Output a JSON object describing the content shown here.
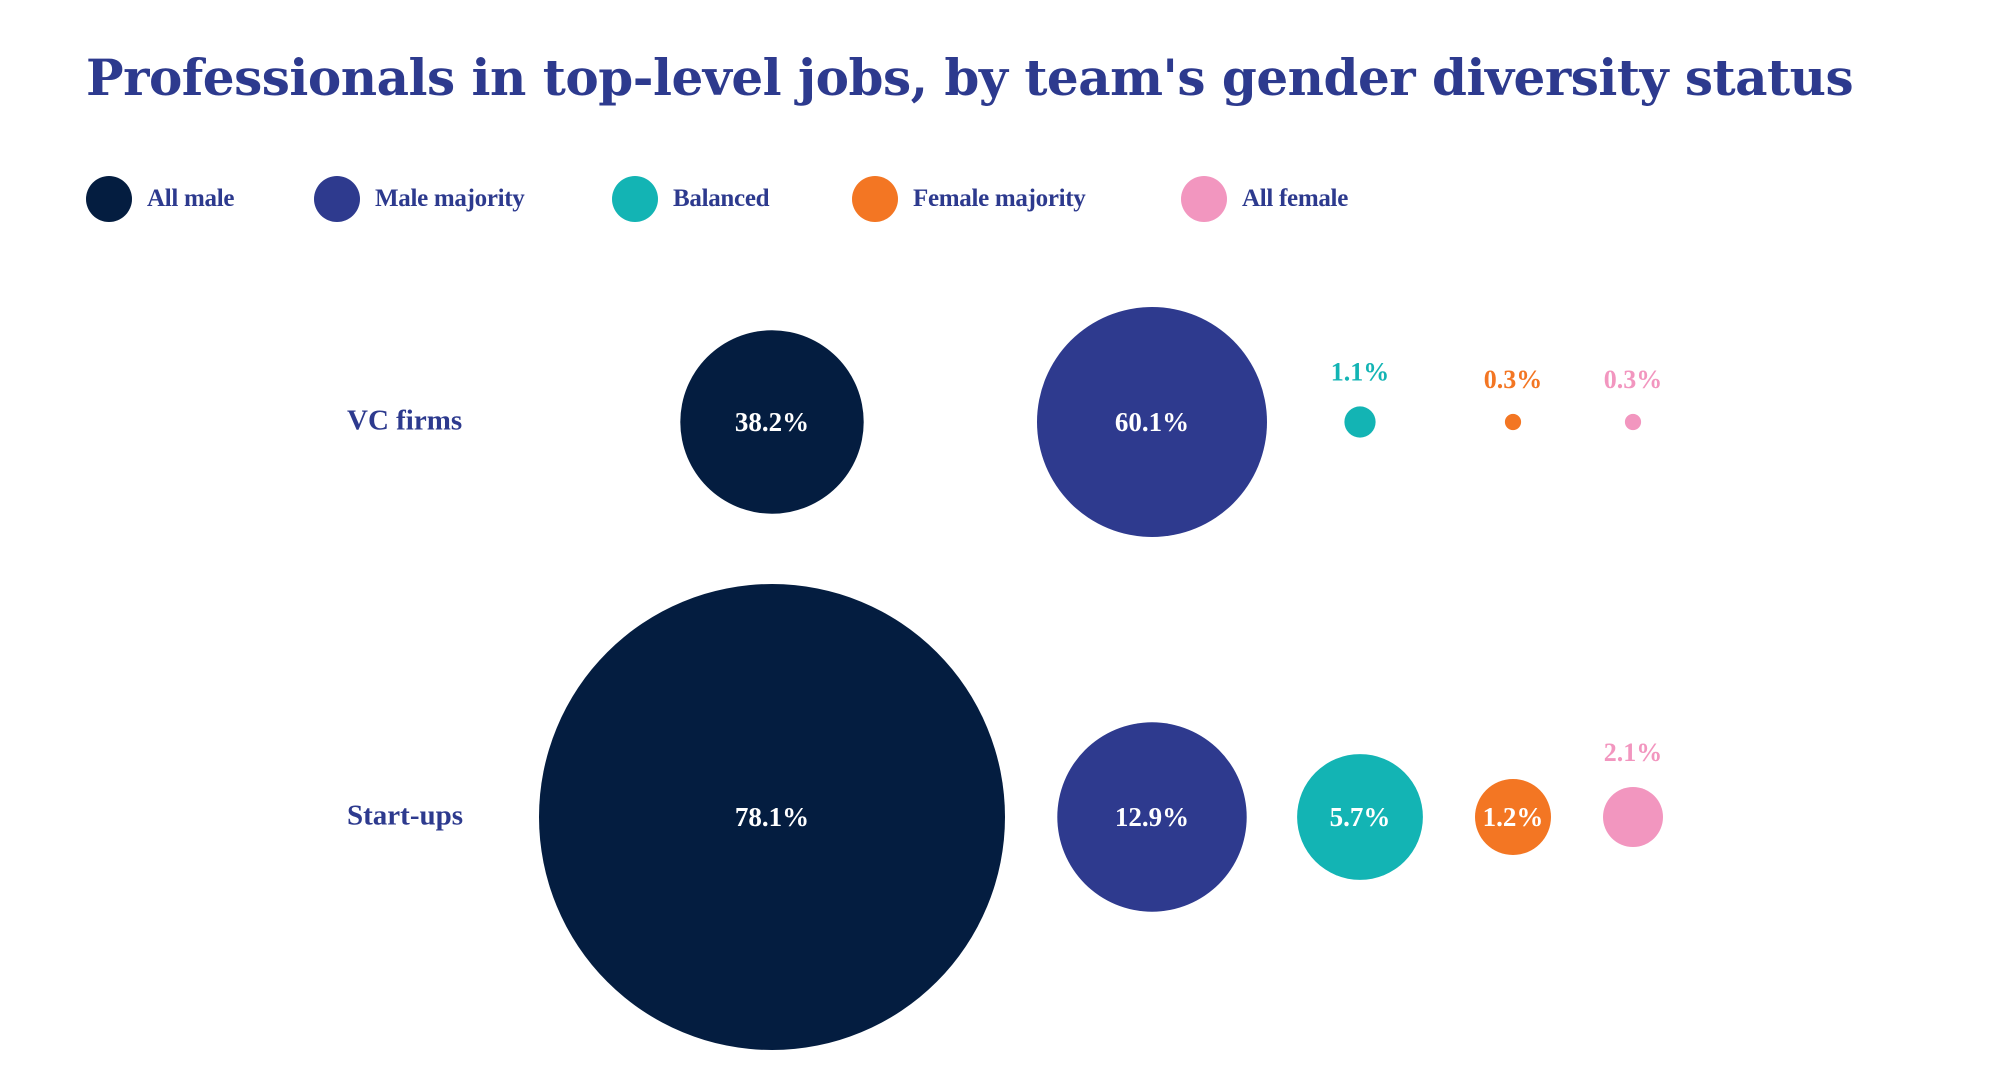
{
  "chart_data": {
    "type": "bubble",
    "title": "Professionals in top-level jobs, by team's gender diversity status",
    "categories": [
      "All male",
      "Male majority",
      "Balanced",
      "Female majority",
      "All female"
    ],
    "colors": {
      "All male": "#041d40",
      "Male majority": "#2e3a8e",
      "Balanced": "#13b4b4",
      "Female majority": "#f37623",
      "All female": "#f296bf"
    },
    "legend": {
      "placement": "top-left",
      "items": [
        {
          "label": "All male",
          "color": "#041d40"
        },
        {
          "label": "Male majority",
          "color": "#2e3a8e"
        },
        {
          "label": "Balanced",
          "color": "#13b4b4"
        },
        {
          "label": "Female majority",
          "color": "#f37623"
        },
        {
          "label": "All female",
          "color": "#f296bf"
        }
      ]
    },
    "unit": "%",
    "series": [
      {
        "name": "VC firms",
        "values": [
          38.2,
          60.1,
          1.1,
          0.3,
          0.3
        ],
        "labels": [
          "38.2%",
          "60.1%",
          "1.1%",
          "0.3%",
          "0.3%"
        ]
      },
      {
        "name": "Start-ups",
        "values": [
          78.1,
          12.9,
          5.7,
          1.2,
          2.1
        ],
        "labels": [
          "78.1%",
          "12.9%",
          "5.7%",
          "1.2%",
          "2.1%"
        ]
      }
    ]
  },
  "title_color": "#2d3a8e",
  "label_text_color": "#ffffff"
}
